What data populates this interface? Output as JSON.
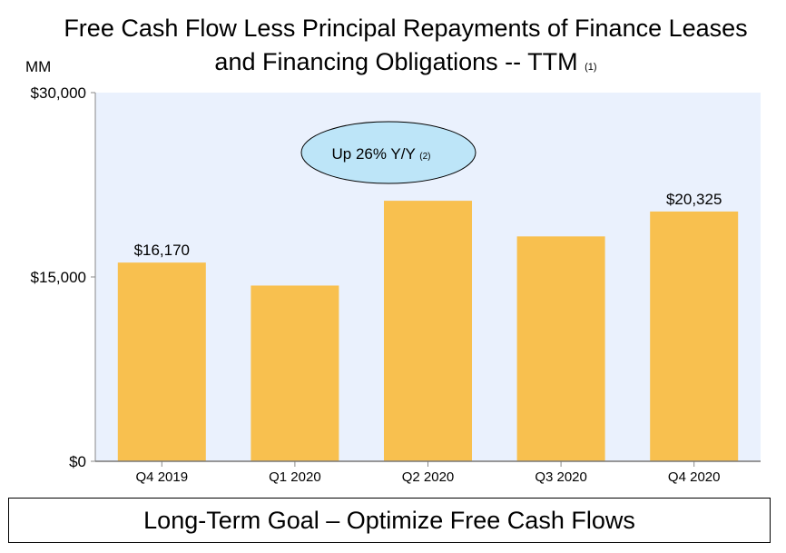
{
  "title_line1": "Free Cash Flow Less Principal Repayments of Finance Leases",
  "title_line2": "and Financing Obligations -- TTM",
  "title_footnote": "(1)",
  "unit_label": "MM",
  "callout": {
    "text": "Up 26% Y/Y",
    "footnote": "(2)"
  },
  "goal_text": "Long-Term Goal – Optimize Free Cash Flows",
  "colors": {
    "bar": "#F8C04F",
    "plot_bg": "#EAF1FD",
    "callout_fill": "#BDE5F8"
  },
  "chart_data": {
    "type": "bar",
    "title": "Free Cash Flow Less Principal Repayments of Finance Leases and Financing Obligations -- TTM",
    "ylabel": "MM",
    "categories": [
      "Q4 2019",
      "Q1 2020",
      "Q2 2020",
      "Q3 2020",
      "Q4 2020"
    ],
    "values": [
      16170,
      14300,
      21200,
      18300,
      20325
    ],
    "data_labels": [
      "$16,170",
      null,
      null,
      null,
      "$20,325"
    ],
    "ylim": [
      0,
      30000
    ],
    "yticks": [
      0,
      15000,
      30000
    ],
    "ytick_labels": [
      "$0",
      "$15,000",
      "$30,000"
    ],
    "grid": false
  }
}
